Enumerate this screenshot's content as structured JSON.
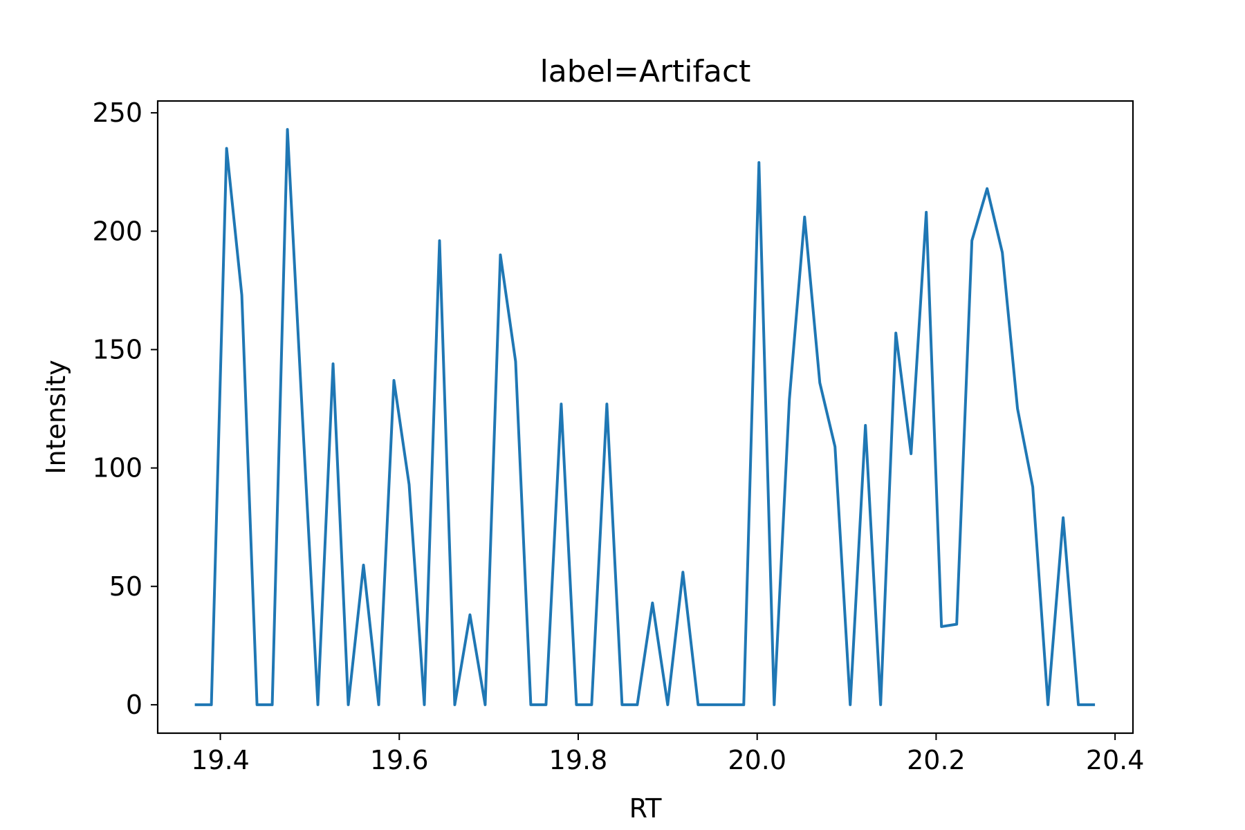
{
  "chart_data": {
    "type": "line",
    "title": "label=Artifact",
    "xlabel": "RT",
    "ylabel": "Intensity",
    "xlim": [
      19.33,
      20.42
    ],
    "ylim": [
      -12,
      255
    ],
    "xticks": [
      19.4,
      19.6,
      19.8,
      20.0,
      20.2,
      20.4
    ],
    "xtick_labels": [
      "19.4",
      "19.6",
      "19.8",
      "20.0",
      "20.2",
      "20.4"
    ],
    "yticks": [
      0,
      50,
      100,
      150,
      200,
      250
    ],
    "ytick_labels": [
      "0",
      "50",
      "100",
      "150",
      "200",
      "250"
    ],
    "grid": false,
    "series": [
      {
        "color": "#1f77b4",
        "x": [
          19.373,
          19.39,
          19.407,
          19.424,
          19.441,
          19.458,
          19.475,
          19.492,
          19.509,
          19.526,
          19.543,
          19.56,
          19.577,
          19.594,
          19.611,
          19.628,
          19.645,
          19.662,
          19.679,
          19.696,
          19.713,
          19.73,
          19.747,
          19.764,
          19.781,
          19.798,
          19.815,
          19.832,
          19.849,
          19.866,
          19.883,
          19.9,
          19.917,
          19.934,
          19.951,
          19.968,
          19.985,
          20.002,
          20.019,
          20.036,
          20.053,
          20.07,
          20.087,
          20.104,
          20.121,
          20.138,
          20.155,
          20.172,
          20.189,
          20.206,
          20.223,
          20.24,
          20.257,
          20.274,
          20.291,
          20.308,
          20.325,
          20.342,
          20.359,
          20.376
        ],
        "y": [
          0,
          0,
          235,
          173,
          0,
          0,
          243,
          120,
          0,
          144,
          0,
          59,
          0,
          137,
          93,
          0,
          196,
          0,
          38,
          0,
          190,
          145,
          0,
          0,
          127,
          0,
          0,
          127,
          0,
          0,
          43,
          0,
          56,
          0,
          0,
          0,
          0,
          229,
          0,
          129,
          206,
          136,
          109,
          0,
          118,
          0,
          157,
          106,
          208,
          33,
          34,
          196,
          218,
          191,
          125,
          92,
          0,
          79,
          0,
          0
        ]
      }
    ]
  }
}
